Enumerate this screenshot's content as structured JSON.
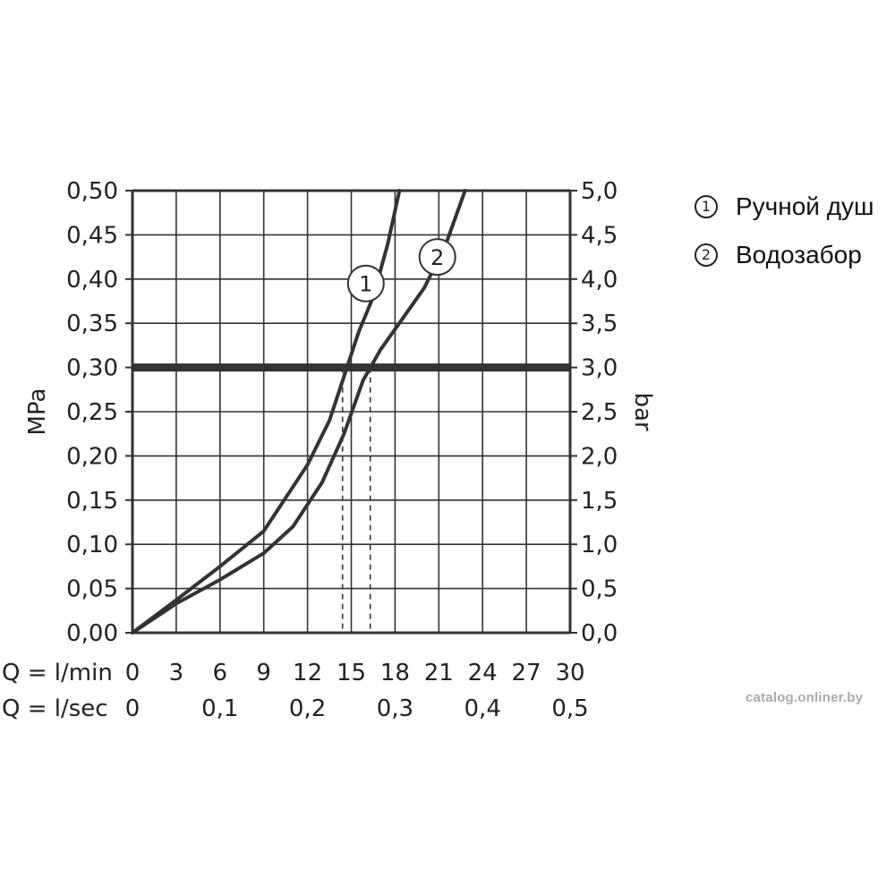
{
  "chart_data": {
    "type": "line",
    "x_lmin": {
      "label": "Q = l/min",
      "ticks": [
        "0",
        "3",
        "6",
        "9",
        "12",
        "15",
        "18",
        "21",
        "24",
        "27",
        "30"
      ],
      "range": [
        0,
        30
      ]
    },
    "x_lsec": {
      "label": "Q = l/sec",
      "ticks": [
        {
          "value": 0,
          "label": "0"
        },
        {
          "value": 6,
          "label": "0,1"
        },
        {
          "value": 12,
          "label": "0,2"
        },
        {
          "value": 18,
          "label": "0,3"
        },
        {
          "value": 24,
          "label": "0,4"
        },
        {
          "value": 30,
          "label": "0,5"
        }
      ]
    },
    "y_left": {
      "label": "MPa",
      "ticks": [
        "0,00",
        "0,05",
        "0,10",
        "0,15",
        "0,20",
        "0,25",
        "0,30",
        "0,35",
        "0,40",
        "0,45",
        "0,50"
      ],
      "range": [
        0,
        0.5
      ]
    },
    "y_right": {
      "label": "bar",
      "ticks": [
        "0,0",
        "0,5",
        "1,0",
        "1,5",
        "2,0",
        "2,5",
        "3,0",
        "3,5",
        "4,0",
        "4,5",
        "5,0"
      ],
      "range": [
        0,
        5
      ]
    },
    "grid": true,
    "reference_line_y": 0.3,
    "dashed_markers_x": [
      14.4,
      16.3
    ],
    "series": [
      {
        "name": "Ручной душ",
        "marker": "1",
        "label_at": [
          16.0,
          0.395
        ],
        "points": [
          [
            0,
            0
          ],
          [
            3,
            0.037
          ],
          [
            6,
            0.075
          ],
          [
            9,
            0.115
          ],
          [
            12,
            0.19
          ],
          [
            13.5,
            0.24
          ],
          [
            14.5,
            0.29
          ],
          [
            15.5,
            0.34
          ],
          [
            16.5,
            0.38
          ],
          [
            17.5,
            0.44
          ],
          [
            18.3,
            0.5
          ]
        ]
      },
      {
        "name": "Водозабор",
        "marker": "2",
        "label_at": [
          20.9,
          0.425
        ],
        "points": [
          [
            0,
            0
          ],
          [
            3,
            0.033
          ],
          [
            6,
            0.06
          ],
          [
            9,
            0.09
          ],
          [
            11,
            0.12
          ],
          [
            13,
            0.17
          ],
          [
            14.5,
            0.225
          ],
          [
            15.8,
            0.285
          ],
          [
            17,
            0.32
          ],
          [
            18.5,
            0.355
          ],
          [
            20,
            0.39
          ],
          [
            21.5,
            0.44
          ],
          [
            22.8,
            0.5
          ]
        ]
      }
    ]
  },
  "legend": [
    {
      "marker": "1",
      "label": "Ручной душ"
    },
    {
      "marker": "2",
      "label": "Водозабор"
    }
  ],
  "watermark": "catalog.onliner.by"
}
